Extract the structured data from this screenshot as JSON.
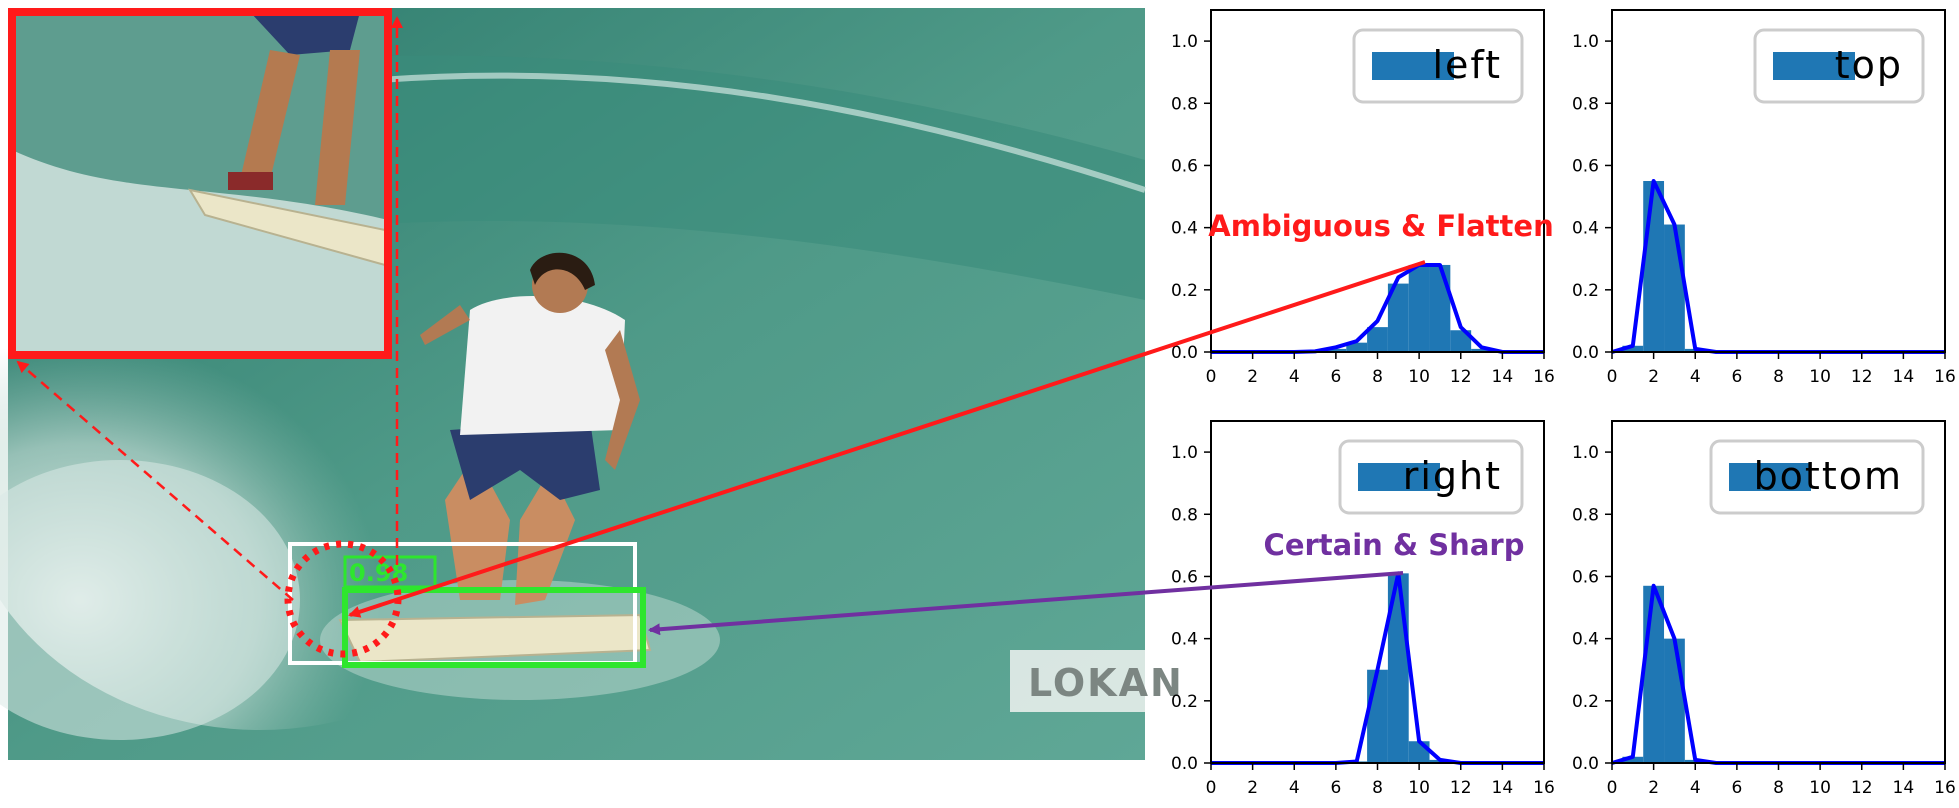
{
  "photo": {
    "watermark": "LOKAN",
    "detection_score": "0.98",
    "colors": {
      "sea_dark": "#1f6e62",
      "sea_light": "#5aa795",
      "foam": "#e8f1ee",
      "gt_box": "#ffffff",
      "pred_box": "#2ee62e",
      "zoom_box": "#ff1a1a"
    }
  },
  "callouts": {
    "ambiguous": "Ambiguous & Flatten",
    "certain": "Certain & Sharp",
    "ambiguous_color": "#ff1a1a",
    "certain_color": "#7030a0"
  },
  "chart_data": [
    {
      "type": "bar",
      "legend": "left",
      "legend_placement": "top-right",
      "x": [
        0,
        1,
        2,
        3,
        4,
        5,
        6,
        7,
        8,
        9,
        10,
        11,
        12,
        13,
        14,
        15,
        16
      ],
      "values": [
        0,
        0,
        0,
        0,
        0,
        0.002,
        0.01,
        0.03,
        0.08,
        0.22,
        0.28,
        0.28,
        0.07,
        0.01,
        0,
        0,
        0
      ],
      "curve": [
        0,
        0,
        0,
        0,
        0,
        0.002,
        0.015,
        0.035,
        0.1,
        0.24,
        0.28,
        0.28,
        0.08,
        0.015,
        0,
        0,
        0
      ],
      "xlim": [
        0,
        16
      ],
      "ylim": [
        0,
        1.1
      ],
      "xticks": [
        "0",
        "2",
        "4",
        "6",
        "8",
        "10",
        "12",
        "14",
        "16"
      ],
      "yticks": [
        "0.0",
        "0.2",
        "0.4",
        "0.6",
        "0.8",
        "1.0"
      ],
      "bar_color": "#1f77b4",
      "curve_color": "#0000ff"
    },
    {
      "type": "bar",
      "legend": "top",
      "legend_placement": "top-right",
      "x": [
        0,
        1,
        2,
        3,
        4,
        5,
        6,
        7,
        8,
        9,
        10,
        11,
        12,
        13,
        14,
        15,
        16
      ],
      "values": [
        0,
        0.02,
        0.55,
        0.41,
        0.01,
        0,
        0,
        0,
        0,
        0,
        0,
        0,
        0,
        0,
        0,
        0,
        0
      ],
      "curve": [
        0,
        0.02,
        0.55,
        0.41,
        0.01,
        0,
        0,
        0,
        0,
        0,
        0,
        0,
        0,
        0,
        0,
        0,
        0
      ],
      "xlim": [
        0,
        16
      ],
      "ylim": [
        0,
        1.1
      ],
      "xticks": [
        "0",
        "2",
        "4",
        "6",
        "8",
        "10",
        "12",
        "14",
        "16"
      ],
      "yticks": [
        "0.0",
        "0.2",
        "0.4",
        "0.6",
        "0.8",
        "1.0"
      ],
      "bar_color": "#1f77b4",
      "curve_color": "#0000ff"
    },
    {
      "type": "bar",
      "legend": "right",
      "legend_placement": "top-right",
      "x": [
        0,
        1,
        2,
        3,
        4,
        5,
        6,
        7,
        8,
        9,
        10,
        11,
        12,
        13,
        14,
        15,
        16
      ],
      "values": [
        0,
        0,
        0,
        0,
        0,
        0,
        0,
        0.005,
        0.3,
        0.61,
        0.07,
        0.01,
        0,
        0,
        0,
        0,
        0
      ],
      "curve": [
        0,
        0,
        0,
        0,
        0,
        0,
        0,
        0.005,
        0.3,
        0.61,
        0.07,
        0.01,
        0,
        0,
        0,
        0,
        0
      ],
      "xlim": [
        0,
        16
      ],
      "ylim": [
        0,
        1.1
      ],
      "xticks": [
        "0",
        "2",
        "4",
        "6",
        "8",
        "10",
        "12",
        "14",
        "16"
      ],
      "yticks": [
        "0.0",
        "0.2",
        "0.4",
        "0.6",
        "0.8",
        "1.0"
      ],
      "bar_color": "#1f77b4",
      "curve_color": "#0000ff"
    },
    {
      "type": "bar",
      "legend": "bottom",
      "legend_placement": "top-right",
      "x": [
        0,
        1,
        2,
        3,
        4,
        5,
        6,
        7,
        8,
        9,
        10,
        11,
        12,
        13,
        14,
        15,
        16
      ],
      "values": [
        0,
        0.02,
        0.57,
        0.4,
        0.01,
        0,
        0,
        0,
        0,
        0,
        0,
        0,
        0,
        0,
        0,
        0,
        0
      ],
      "curve": [
        0,
        0.02,
        0.57,
        0.4,
        0.01,
        0,
        0,
        0,
        0,
        0,
        0,
        0,
        0,
        0,
        0,
        0,
        0
      ],
      "xlim": [
        0,
        16
      ],
      "ylim": [
        0,
        1.1
      ],
      "xticks": [
        "0",
        "2",
        "4",
        "6",
        "8",
        "10",
        "12",
        "14",
        "16"
      ],
      "yticks": [
        "0.0",
        "0.2",
        "0.4",
        "0.6",
        "0.8",
        "1.0"
      ],
      "bar_color": "#1f77b4",
      "curve_color": "#0000ff"
    }
  ]
}
